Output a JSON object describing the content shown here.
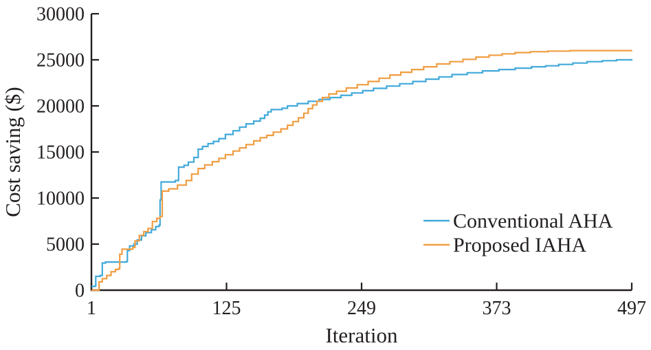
{
  "figure": {
    "background": "#ffffff",
    "axis_color": "#231f20"
  },
  "chart_data": {
    "type": "line",
    "title": "",
    "xlabel": "Iteration",
    "ylabel": "Cost saving ($)",
    "xlim": [
      1,
      497
    ],
    "ylim": [
      0,
      30000
    ],
    "x_ticks": [
      1,
      125,
      249,
      373,
      497
    ],
    "y_ticks": [
      0,
      5000,
      10000,
      15000,
      20000,
      25000,
      30000
    ],
    "grid": false,
    "line_style": "step",
    "legend_position": "inside-lower-right",
    "series": [
      {
        "name": "Conventional AHA",
        "color": "#41a9da",
        "points": [
          [
            1,
            400
          ],
          [
            4,
            450
          ],
          [
            5,
            1500
          ],
          [
            9,
            1600
          ],
          [
            11,
            2950
          ],
          [
            14,
            3050
          ],
          [
            33,
            3100
          ],
          [
            34,
            4300
          ],
          [
            36,
            4800
          ],
          [
            40,
            5000
          ],
          [
            43,
            5450
          ],
          [
            47,
            5900
          ],
          [
            51,
            6250
          ],
          [
            56,
            6550
          ],
          [
            60,
            6900
          ],
          [
            63,
            7050
          ],
          [
            64,
            9800
          ],
          [
            65,
            11750
          ],
          [
            78,
            11900
          ],
          [
            81,
            13350
          ],
          [
            86,
            13550
          ],
          [
            90,
            13900
          ],
          [
            95,
            14400
          ],
          [
            99,
            15300
          ],
          [
            103,
            15600
          ],
          [
            108,
            15900
          ],
          [
            113,
            16150
          ],
          [
            118,
            16450
          ],
          [
            124,
            16900
          ],
          [
            131,
            17300
          ],
          [
            137,
            17700
          ],
          [
            143,
            18050
          ],
          [
            150,
            18350
          ],
          [
            156,
            18650
          ],
          [
            160,
            19000
          ],
          [
            163,
            19350
          ],
          [
            166,
            19600
          ],
          [
            176,
            19750
          ],
          [
            181,
            20000
          ],
          [
            190,
            20250
          ],
          [
            200,
            20500
          ],
          [
            210,
            20700
          ],
          [
            220,
            20900
          ],
          [
            230,
            21150
          ],
          [
            240,
            21400
          ],
          [
            250,
            21650
          ],
          [
            260,
            21900
          ],
          [
            272,
            22150
          ],
          [
            284,
            22400
          ],
          [
            296,
            22650
          ],
          [
            308,
            22900
          ],
          [
            320,
            23150
          ],
          [
            332,
            23400
          ],
          [
            346,
            23600
          ],
          [
            360,
            23800
          ],
          [
            375,
            23950
          ],
          [
            390,
            24100
          ],
          [
            405,
            24250
          ],
          [
            418,
            24350
          ],
          [
            430,
            24500
          ],
          [
            443,
            24650
          ],
          [
            456,
            24800
          ],
          [
            470,
            24900
          ],
          [
            483,
            25000
          ],
          [
            497,
            25100
          ]
        ]
      },
      {
        "name": "Proposed IAHA",
        "color": "#f09d41",
        "points": [
          [
            1,
            0
          ],
          [
            7,
            0
          ],
          [
            8,
            900
          ],
          [
            11,
            1250
          ],
          [
            15,
            1600
          ],
          [
            19,
            2000
          ],
          [
            23,
            2250
          ],
          [
            26,
            2350
          ],
          [
            27,
            3900
          ],
          [
            29,
            4450
          ],
          [
            39,
            4650
          ],
          [
            41,
            5350
          ],
          [
            45,
            5950
          ],
          [
            49,
            6350
          ],
          [
            53,
            6700
          ],
          [
            57,
            7450
          ],
          [
            61,
            7800
          ],
          [
            64,
            8000
          ],
          [
            66,
            10750
          ],
          [
            72,
            11000
          ],
          [
            80,
            11400
          ],
          [
            88,
            11900
          ],
          [
            93,
            12600
          ],
          [
            99,
            13200
          ],
          [
            105,
            13600
          ],
          [
            112,
            13950
          ],
          [
            118,
            14300
          ],
          [
            124,
            14700
          ],
          [
            131,
            15100
          ],
          [
            137,
            15450
          ],
          [
            143,
            15800
          ],
          [
            150,
            16200
          ],
          [
            156,
            16550
          ],
          [
            162,
            16800
          ],
          [
            168,
            17150
          ],
          [
            175,
            17500
          ],
          [
            181,
            17900
          ],
          [
            186,
            18300
          ],
          [
            191,
            18700
          ],
          [
            196,
            19200
          ],
          [
            200,
            19700
          ],
          [
            204,
            20100
          ],
          [
            208,
            20500
          ],
          [
            213,
            20900
          ],
          [
            219,
            21300
          ],
          [
            226,
            21600
          ],
          [
            235,
            21950
          ],
          [
            245,
            22300
          ],
          [
            255,
            22650
          ],
          [
            265,
            23000
          ],
          [
            275,
            23350
          ],
          [
            285,
            23650
          ],
          [
            295,
            23950
          ],
          [
            306,
            24250
          ],
          [
            318,
            24550
          ],
          [
            330,
            24800
          ],
          [
            342,
            25050
          ],
          [
            354,
            25300
          ],
          [
            366,
            25500
          ],
          [
            378,
            25650
          ],
          [
            390,
            25780
          ],
          [
            404,
            25880
          ],
          [
            420,
            25950
          ],
          [
            440,
            26000
          ],
          [
            497,
            26010
          ]
        ]
      }
    ]
  }
}
